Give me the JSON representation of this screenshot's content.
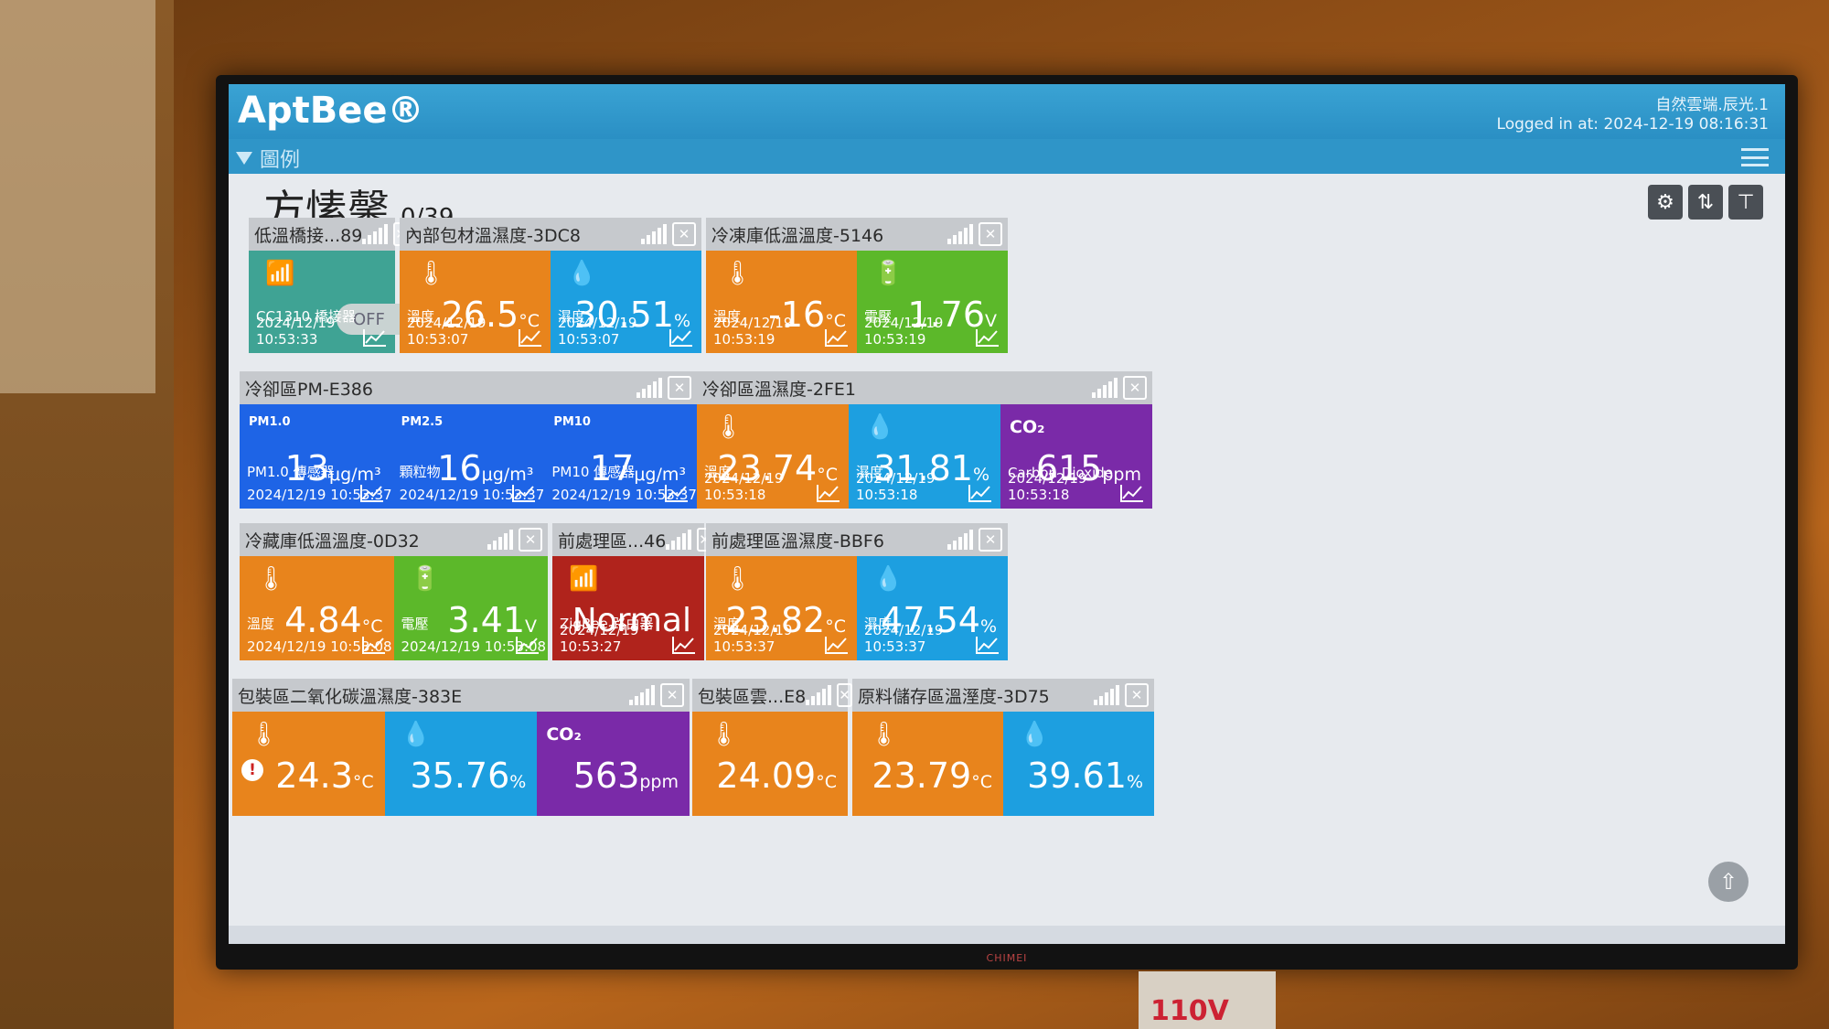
{
  "app": {
    "logo": "AptBee®",
    "site_name": "自然雲端.辰光.1",
    "login_info": "Logged in at: 2024-12-19 08:16:31",
    "legend_label": "圖例"
  },
  "page": {
    "title": "方愫馨",
    "count": "0/39"
  },
  "monitor": {
    "brand": "CHIMEI",
    "socket_label": "110V"
  },
  "cards": [
    {
      "title": "低溫橋接...89",
      "tiles": [
        {
          "kind": "switch",
          "color": "teal",
          "switch_label": "OFF",
          "label": "CC1310 橋接器",
          "time": "2024/12/19 10:53:33"
        }
      ]
    },
    {
      "title": "內部包材溫濕度-3DC8",
      "tiles": [
        {
          "kind": "temp",
          "color": "orange",
          "value": "26.5",
          "unit": "°C",
          "label": "溫度",
          "time": "2024/12/19 10:53:07"
        },
        {
          "kind": "hum",
          "color": "blue",
          "value": "30.51",
          "unit": "%",
          "label": "濕度",
          "time": "2024/12/19 10:53:07"
        }
      ]
    },
    {
      "title": "冷凍庫低溫溫度-5146",
      "tiles": [
        {
          "kind": "temp",
          "color": "orange",
          "value": "-16",
          "unit": "°C",
          "label": "溫度",
          "time": "2024/12/19 10:53:19"
        },
        {
          "kind": "volt",
          "color": "green",
          "value": "1.76",
          "unit": "V",
          "label": "電壓",
          "time": "2024/12/19 10:53:19"
        }
      ]
    },
    {
      "title": "冷卻區PM-E386",
      "tiles": [
        {
          "kind": "pm",
          "pm_label": "PM1.0",
          "color": "royal",
          "value": "13",
          "unit": "μg/m³",
          "label": "PM1.0 傳感器",
          "time": "2024/12/19 10:53:37"
        },
        {
          "kind": "pm",
          "pm_label": "PM2.5",
          "color": "royal",
          "value": "16",
          "unit": "μg/m³",
          "label": "顆粒物",
          "time": "2024/12/19 10:53:37"
        },
        {
          "kind": "pm",
          "pm_label": "PM10",
          "color": "royal",
          "value": "17",
          "unit": "μg/m³",
          "label": "PM10 傳感器",
          "time": "2024/12/19 10:53:37"
        }
      ]
    },
    {
      "title": "冷卻區溫濕度-2FE1",
      "tiles": [
        {
          "kind": "temp",
          "color": "orange",
          "value": "23.74",
          "unit": "°C",
          "label": "溫度",
          "time": "2024/12/19 10:53:18"
        },
        {
          "kind": "hum",
          "color": "blue",
          "value": "31.81",
          "unit": "%",
          "label": "濕度",
          "time": "2024/12/19 10:53:18"
        },
        {
          "kind": "co2",
          "co2_label": "CO₂",
          "color": "purple",
          "value": "615",
          "unit": "ppm",
          "label": "Carbon Dioxide",
          "time": "2024/12/19 10:53:18"
        }
      ]
    },
    {
      "title": "冷藏庫低溫溫度-0D32",
      "tiles": [
        {
          "kind": "temp",
          "color": "orange",
          "value": "4.84",
          "unit": "°C",
          "label": "溫度",
          "time": "2024/12/19 10:53:08"
        },
        {
          "kind": "volt",
          "color": "green",
          "value": "3.41",
          "unit": "V",
          "label": "電壓",
          "time": "2024/12/19 10:53:08"
        }
      ]
    },
    {
      "title": "前處理區...46",
      "tiles": [
        {
          "kind": "status",
          "color": "red",
          "value": "Normal",
          "label": "ZigBee 路由器",
          "time": "2024/12/19 10:53:27"
        }
      ]
    },
    {
      "title": "前處理區溫濕度-BBF6",
      "tiles": [
        {
          "kind": "temp",
          "color": "orange",
          "value": "23.82",
          "unit": "°C",
          "label": "溫度",
          "time": "2024/12/19 10:53:37"
        },
        {
          "kind": "hum",
          "color": "blue",
          "value": "47.54",
          "unit": "%",
          "label": "濕度",
          "time": "2024/12/19 10:53:37"
        }
      ]
    },
    {
      "title": "包裝區二氧化碳溫濕度-383E",
      "tiles": [
        {
          "kind": "temp",
          "color": "orange",
          "value": "24.3",
          "unit": "°C",
          "alert": "!"
        },
        {
          "kind": "hum",
          "color": "blue",
          "value": "35.76",
          "unit": "%"
        },
        {
          "kind": "co2",
          "co2_label": "CO₂",
          "color": "purple",
          "value": "563",
          "unit": "ppm"
        }
      ]
    },
    {
      "title": "包裝區雲...E8",
      "tiles": [
        {
          "kind": "temp",
          "color": "orange",
          "value": "24.09",
          "unit": "°C"
        }
      ]
    },
    {
      "title": "原料儲存區溫溼度-3D75",
      "tiles": [
        {
          "kind": "temp",
          "color": "orange",
          "value": "23.79",
          "unit": "°C"
        },
        {
          "kind": "hum",
          "color": "blue",
          "value": "39.61",
          "unit": "%"
        }
      ]
    }
  ]
}
